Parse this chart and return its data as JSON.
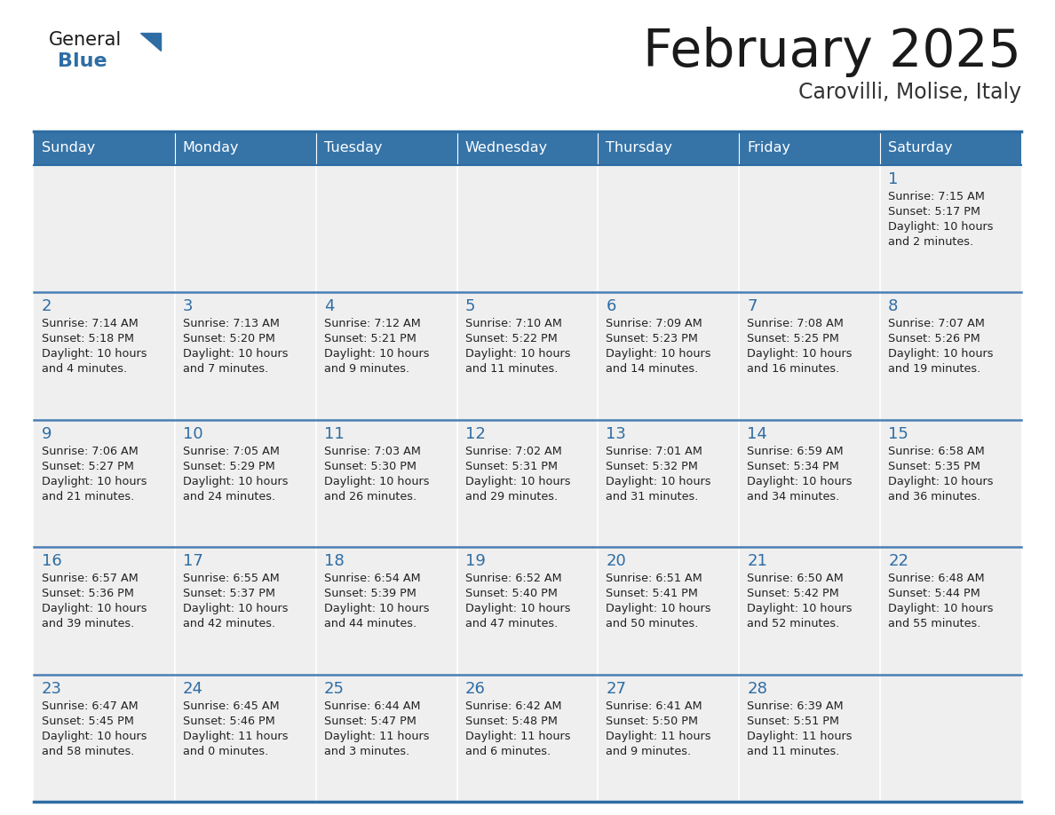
{
  "title": "February 2025",
  "subtitle": "Carovilli, Molise, Italy",
  "header_bg": "#3674a8",
  "header_text": "#FFFFFF",
  "cell_bg": "#EFEFEF",
  "border_color": "#2E6DA4",
  "separator_color": "#4a7fb5",
  "day_headers": [
    "Sunday",
    "Monday",
    "Tuesday",
    "Wednesday",
    "Thursday",
    "Friday",
    "Saturday"
  ],
  "title_color": "#1a1a1a",
  "subtitle_color": "#333333",
  "number_color": "#2E6DA4",
  "text_color": "#222222",
  "logo_general_color": "#1a1a1a",
  "logo_blue_color": "#2E6DA4",
  "days": [
    {
      "day": 1,
      "col": 6,
      "row": 0,
      "sunrise": "7:15 AM",
      "sunset": "5:17 PM",
      "daylight": "10 hours\nand 2 minutes."
    },
    {
      "day": 2,
      "col": 0,
      "row": 1,
      "sunrise": "7:14 AM",
      "sunset": "5:18 PM",
      "daylight": "10 hours\nand 4 minutes."
    },
    {
      "day": 3,
      "col": 1,
      "row": 1,
      "sunrise": "7:13 AM",
      "sunset": "5:20 PM",
      "daylight": "10 hours\nand 7 minutes."
    },
    {
      "day": 4,
      "col": 2,
      "row": 1,
      "sunrise": "7:12 AM",
      "sunset": "5:21 PM",
      "daylight": "10 hours\nand 9 minutes."
    },
    {
      "day": 5,
      "col": 3,
      "row": 1,
      "sunrise": "7:10 AM",
      "sunset": "5:22 PM",
      "daylight": "10 hours\nand 11 minutes."
    },
    {
      "day": 6,
      "col": 4,
      "row": 1,
      "sunrise": "7:09 AM",
      "sunset": "5:23 PM",
      "daylight": "10 hours\nand 14 minutes."
    },
    {
      "day": 7,
      "col": 5,
      "row": 1,
      "sunrise": "7:08 AM",
      "sunset": "5:25 PM",
      "daylight": "10 hours\nand 16 minutes."
    },
    {
      "day": 8,
      "col": 6,
      "row": 1,
      "sunrise": "7:07 AM",
      "sunset": "5:26 PM",
      "daylight": "10 hours\nand 19 minutes."
    },
    {
      "day": 9,
      "col": 0,
      "row": 2,
      "sunrise": "7:06 AM",
      "sunset": "5:27 PM",
      "daylight": "10 hours\nand 21 minutes."
    },
    {
      "day": 10,
      "col": 1,
      "row": 2,
      "sunrise": "7:05 AM",
      "sunset": "5:29 PM",
      "daylight": "10 hours\nand 24 minutes."
    },
    {
      "day": 11,
      "col": 2,
      "row": 2,
      "sunrise": "7:03 AM",
      "sunset": "5:30 PM",
      "daylight": "10 hours\nand 26 minutes."
    },
    {
      "day": 12,
      "col": 3,
      "row": 2,
      "sunrise": "7:02 AM",
      "sunset": "5:31 PM",
      "daylight": "10 hours\nand 29 minutes."
    },
    {
      "day": 13,
      "col": 4,
      "row": 2,
      "sunrise": "7:01 AM",
      "sunset": "5:32 PM",
      "daylight": "10 hours\nand 31 minutes."
    },
    {
      "day": 14,
      "col": 5,
      "row": 2,
      "sunrise": "6:59 AM",
      "sunset": "5:34 PM",
      "daylight": "10 hours\nand 34 minutes."
    },
    {
      "day": 15,
      "col": 6,
      "row": 2,
      "sunrise": "6:58 AM",
      "sunset": "5:35 PM",
      "daylight": "10 hours\nand 36 minutes."
    },
    {
      "day": 16,
      "col": 0,
      "row": 3,
      "sunrise": "6:57 AM",
      "sunset": "5:36 PM",
      "daylight": "10 hours\nand 39 minutes."
    },
    {
      "day": 17,
      "col": 1,
      "row": 3,
      "sunrise": "6:55 AM",
      "sunset": "5:37 PM",
      "daylight": "10 hours\nand 42 minutes."
    },
    {
      "day": 18,
      "col": 2,
      "row": 3,
      "sunrise": "6:54 AM",
      "sunset": "5:39 PM",
      "daylight": "10 hours\nand 44 minutes."
    },
    {
      "day": 19,
      "col": 3,
      "row": 3,
      "sunrise": "6:52 AM",
      "sunset": "5:40 PM",
      "daylight": "10 hours\nand 47 minutes."
    },
    {
      "day": 20,
      "col": 4,
      "row": 3,
      "sunrise": "6:51 AM",
      "sunset": "5:41 PM",
      "daylight": "10 hours\nand 50 minutes."
    },
    {
      "day": 21,
      "col": 5,
      "row": 3,
      "sunrise": "6:50 AM",
      "sunset": "5:42 PM",
      "daylight": "10 hours\nand 52 minutes."
    },
    {
      "day": 22,
      "col": 6,
      "row": 3,
      "sunrise": "6:48 AM",
      "sunset": "5:44 PM",
      "daylight": "10 hours\nand 55 minutes."
    },
    {
      "day": 23,
      "col": 0,
      "row": 4,
      "sunrise": "6:47 AM",
      "sunset": "5:45 PM",
      "daylight": "10 hours\nand 58 minutes."
    },
    {
      "day": 24,
      "col": 1,
      "row": 4,
      "sunrise": "6:45 AM",
      "sunset": "5:46 PM",
      "daylight": "11 hours\nand 0 minutes."
    },
    {
      "day": 25,
      "col": 2,
      "row": 4,
      "sunrise": "6:44 AM",
      "sunset": "5:47 PM",
      "daylight": "11 hours\nand 3 minutes."
    },
    {
      "day": 26,
      "col": 3,
      "row": 4,
      "sunrise": "6:42 AM",
      "sunset": "5:48 PM",
      "daylight": "11 hours\nand 6 minutes."
    },
    {
      "day": 27,
      "col": 4,
      "row": 4,
      "sunrise": "6:41 AM",
      "sunset": "5:50 PM",
      "daylight": "11 hours\nand 9 minutes."
    },
    {
      "day": 28,
      "col": 5,
      "row": 4,
      "sunrise": "6:39 AM",
      "sunset": "5:51 PM",
      "daylight": "11 hours\nand 11 minutes."
    }
  ]
}
